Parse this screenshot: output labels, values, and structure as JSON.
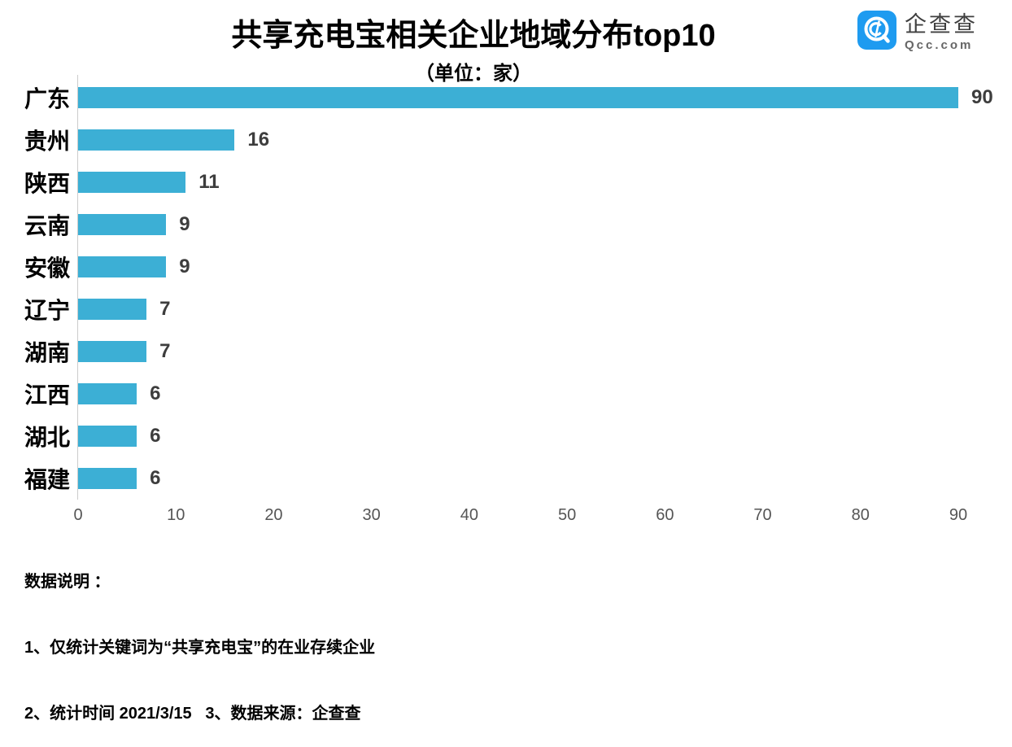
{
  "header": {
    "title": "共享充电宝相关企业地域分布top10",
    "subtitle": "（单位：家）"
  },
  "logo": {
    "name": "企查查",
    "domain": "Qcc.com",
    "icon_color": "#1e9bf0"
  },
  "chart_data": {
    "type": "bar",
    "orientation": "horizontal",
    "title": "共享充电宝相关企业地域分布top10",
    "subtitle": "（单位：家）",
    "categories": [
      "广东",
      "贵州",
      "陕西",
      "云南",
      "安徽",
      "辽宁",
      "湖南",
      "江西",
      "湖北",
      "福建"
    ],
    "values": [
      90,
      16,
      11,
      9,
      9,
      7,
      7,
      6,
      6,
      6
    ],
    "xlabel": "",
    "ylabel": "",
    "xlim": [
      0,
      90
    ],
    "x_ticks": [
      0,
      10,
      20,
      30,
      40,
      50,
      60,
      70,
      80,
      90
    ],
    "bar_color": "#3cafd5",
    "grid": false,
    "legend": false,
    "value_labels": true
  },
  "footnotes": {
    "heading": "数据说明 ：",
    "line1": "1、仅统计关键词为“共享充电宝”的在业存续企业",
    "line2": "2、统计时间 2021/3/15   3、数据来源：企查查"
  }
}
